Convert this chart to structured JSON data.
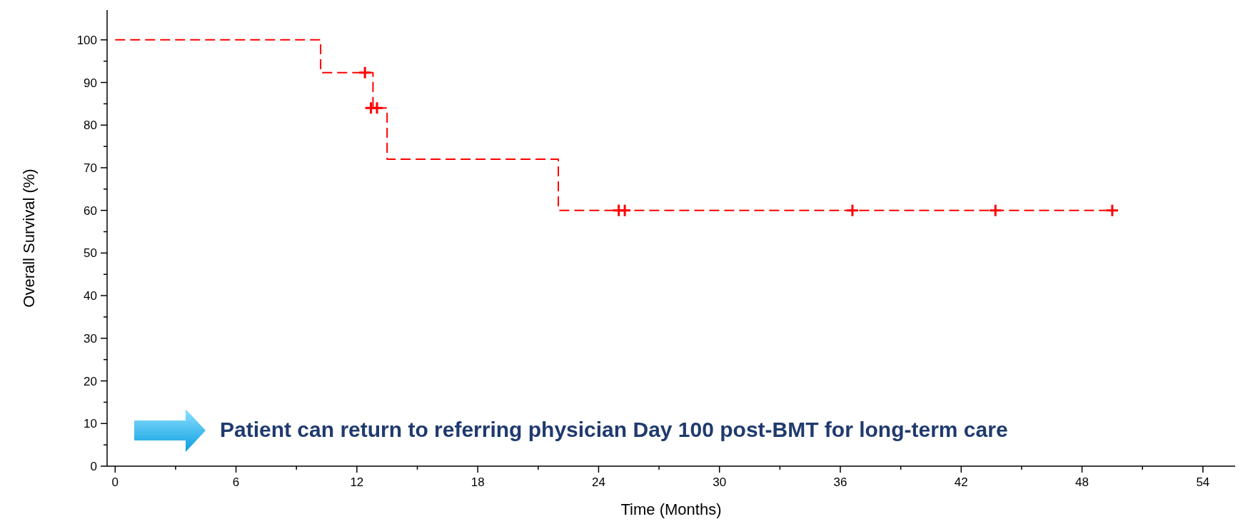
{
  "chart_data": {
    "type": "step",
    "xlabel": "Time (Months)",
    "ylabel": "Overall Survival (%)",
    "xlim": [
      -0.4,
      55.6
    ],
    "ylim": [
      0,
      107
    ],
    "xticks": [
      0,
      {
        "value": 3,
        "label": null
      },
      6,
      {
        "value": 9,
        "label": null
      },
      12,
      {
        "value": 15,
        "label": null
      },
      18,
      {
        "value": 21,
        "label": null
      },
      24,
      {
        "value": 27,
        "label": null
      },
      30,
      {
        "value": 33,
        "label": null
      },
      36,
      {
        "value": 39,
        "label": null
      },
      42,
      {
        "value": 45,
        "label": null
      },
      48,
      {
        "value": 51,
        "label": null
      },
      54
    ],
    "yticks": [
      0,
      {
        "value": 5,
        "label": null
      },
      10,
      {
        "value": 15,
        "label": null
      },
      20,
      {
        "value": 25,
        "label": null
      },
      30,
      {
        "value": 35,
        "label": null
      },
      40,
      {
        "value": 45,
        "label": null
      },
      50,
      {
        "value": 55,
        "label": null
      },
      60,
      {
        "value": 65,
        "label": null
      },
      70,
      {
        "value": 75,
        "label": null
      },
      80,
      {
        "value": 85,
        "label": null
      },
      90,
      {
        "value": 95,
        "label": null
      },
      100
    ],
    "grid": false,
    "line_style": "dashed",
    "series": [
      {
        "color": "#ff0000",
        "x": [
          0,
          10.2,
          12.8,
          13.5,
          22,
          49.5
        ],
        "values": [
          100,
          92.3,
          84,
          72,
          60,
          60
        ]
      },
      {
        "type": "scatter",
        "color": "#ff0000",
        "marker": "cross",
        "x": [
          12.4,
          12.7,
          13,
          25,
          25.3,
          36.6,
          43.7,
          49.5
        ],
        "values": [
          92.3,
          84,
          84,
          60,
          60,
          60,
          60,
          60
        ]
      }
    ],
    "annotations": [
      "Patient can return to referring physician Day 100 post-BMT for long-term care"
    ]
  }
}
